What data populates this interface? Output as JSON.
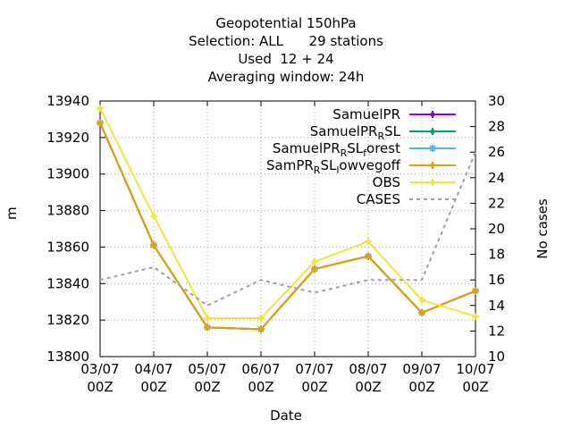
{
  "title_lines": [
    "Geopotential 150hPa",
    "Selection: ALL      29 stations",
    "Used  12 + 24",
    "Averaging window: 24h"
  ],
  "chart_data": {
    "type": "line",
    "xlabel": "Date",
    "ylabel": "m",
    "y2label": "No cases",
    "categories": [
      "03/07\n00Z",
      "04/07\n00Z",
      "05/07\n00Z",
      "06/07\n00Z",
      "07/07\n00Z",
      "08/07\n00Z",
      "09/07\n00Z",
      "10/07\n00Z"
    ],
    "ylim": [
      13800,
      13940
    ],
    "yticks": [
      13800,
      13820,
      13840,
      13860,
      13880,
      13900,
      13920,
      13940
    ],
    "y2lim": [
      10,
      30
    ],
    "y2ticks": [
      10,
      12,
      14,
      16,
      18,
      20,
      22,
      24,
      26,
      28,
      30
    ],
    "grid": true,
    "legend_position": "top-right",
    "series": [
      {
        "name": "SamuelPR",
        "color": "#9400d3",
        "marker": "plus",
        "axis": "y1",
        "values": [
          13928,
          13861,
          13816,
          13815,
          13848,
          13855,
          13824,
          13836
        ]
      },
      {
        "name": "SamuelPR_RSL",
        "color": "#009e73",
        "marker": "plus",
        "axis": "y1",
        "values": [
          13928,
          13861,
          13816,
          13815,
          13848,
          13855,
          13824,
          13836
        ]
      },
      {
        "name": "SamuelPR_RSL_forest",
        "color": "#56b4e9",
        "marker": "star",
        "axis": "y1",
        "values": [
          13928,
          13861,
          13816,
          13815,
          13848,
          13855,
          13824,
          13836
        ]
      },
      {
        "name": "SamPR_RSL_lowvegoff",
        "color": "#e69f00",
        "marker": "plus",
        "axis": "y1",
        "values": [
          13928,
          13861,
          13816,
          13815,
          13848,
          13855,
          13824,
          13836
        ]
      },
      {
        "name": "OBS",
        "color": "#f0e442",
        "marker": "plus",
        "axis": "y1",
        "values": [
          13936,
          13877,
          13821,
          13821,
          13852,
          13863,
          13831,
          13822
        ]
      },
      {
        "name": "CASES",
        "color": "#a0a0a0",
        "marker": "none",
        "dashed": true,
        "axis": "y2",
        "values": [
          16,
          17,
          14,
          16,
          15,
          16,
          16,
          26
        ]
      }
    ],
    "legend": [
      {
        "main": "SamuelPR",
        "sub": "",
        "rest": ""
      },
      {
        "main": "SamuelPR",
        "sub": "R",
        "rest": "SL"
      },
      {
        "main": "SamuelPR",
        "sub": "R",
        "rest": "SL",
        "sub2": "f",
        "rest2": "orest"
      },
      {
        "main": "SamPR",
        "sub": "R",
        "rest": "SL",
        "sub2": "l",
        "rest2": "owvegoff"
      },
      {
        "main": "OBS",
        "sub": "",
        "rest": ""
      },
      {
        "main": "CASES",
        "sub": "",
        "rest": ""
      }
    ]
  }
}
